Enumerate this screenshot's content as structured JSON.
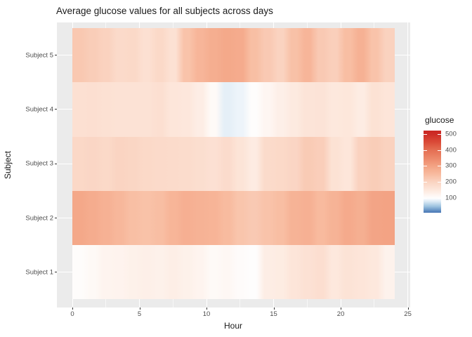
{
  "chart_data": {
    "type": "heatmap",
    "title": "Average glucose values for all subjects across days",
    "xlabel": "Hour",
    "ylabel": "Subject",
    "x_hours": [
      0,
      1,
      2,
      3,
      4,
      5,
      6,
      7,
      8,
      9,
      10,
      11,
      12,
      13,
      14,
      15,
      16,
      17,
      18,
      19,
      20,
      21,
      22,
      23
    ],
    "x_ticks": [
      0,
      5,
      10,
      15,
      20,
      25
    ],
    "x_minor_ticks": [
      2.5,
      7.5,
      12.5,
      17.5,
      22.5
    ],
    "x_range_shown": [
      -1.2,
      25.2
    ],
    "tile_span_hours": [
      0,
      24
    ],
    "y_categories_top_to_bottom": [
      "Subject 5",
      "Subject 4",
      "Subject 3",
      "Subject 2",
      "Subject 1"
    ],
    "series": [
      {
        "name": "Subject 5",
        "values": [
          225,
          215,
          205,
          185,
          188,
          170,
          188,
          168,
          235,
          262,
          278,
          288,
          284,
          243,
          222,
          203,
          238,
          262,
          222,
          210,
          245,
          270,
          235,
          205
        ]
      },
      {
        "name": "Subject 4",
        "values": [
          170,
          172,
          168,
          165,
          165,
          165,
          172,
          155,
          152,
          138,
          110,
          85,
          90,
          103,
          118,
          133,
          145,
          160,
          162,
          150,
          153,
          141,
          166,
          158
        ]
      },
      {
        "name": "Subject 3",
        "values": [
          190,
          195,
          188,
          200,
          196,
          188,
          186,
          183,
          181,
          176,
          169,
          182,
          161,
          143,
          183,
          188,
          197,
          218,
          212,
          166,
          155,
          205,
          215,
          205
        ]
      },
      {
        "name": "Subject 2",
        "values": [
          290,
          282,
          270,
          258,
          243,
          237,
          244,
          263,
          274,
          269,
          264,
          250,
          231,
          222,
          234,
          245,
          266,
          272,
          252,
          267,
          285,
          276,
          297,
          300
        ]
      },
      {
        "name": "Subject 1",
        "values": [
          105,
          112,
          122,
          125,
          130,
          133,
          130,
          137,
          130,
          122,
          110,
          115,
          106,
          102,
          138,
          142,
          158,
          167,
          175,
          150,
          163,
          157,
          150,
          128
        ]
      }
    ],
    "legend": {
      "title": "glucose",
      "ticks": [
        500,
        400,
        300,
        200,
        100
      ],
      "limits": [
        10,
        520
      ],
      "position": "right"
    },
    "color_scale": {
      "type": "diverging blue-white-red",
      "stops": [
        [
          10,
          "#4575b4"
        ],
        [
          50,
          "#9ec4e0"
        ],
        [
          80,
          "#dceaf5"
        ],
        [
          100,
          "#fefefe"
        ],
        [
          150,
          "#fde8dd"
        ],
        [
          200,
          "#fad4c2"
        ],
        [
          250,
          "#f8bb9f"
        ],
        [
          300,
          "#f3a384"
        ],
        [
          350,
          "#ec8769"
        ],
        [
          400,
          "#e46e52"
        ],
        [
          450,
          "#da4a37"
        ],
        [
          500,
          "#cd2b26"
        ],
        [
          520,
          "#ca2622"
        ]
      ]
    },
    "colors": {
      "panel_background": "#ebebeb",
      "gridline": "#ffffff",
      "tick_mark": "#333333",
      "tick_label_text": "#4d4d4d",
      "title_text": "#1a1a1a"
    },
    "grid": true
  }
}
